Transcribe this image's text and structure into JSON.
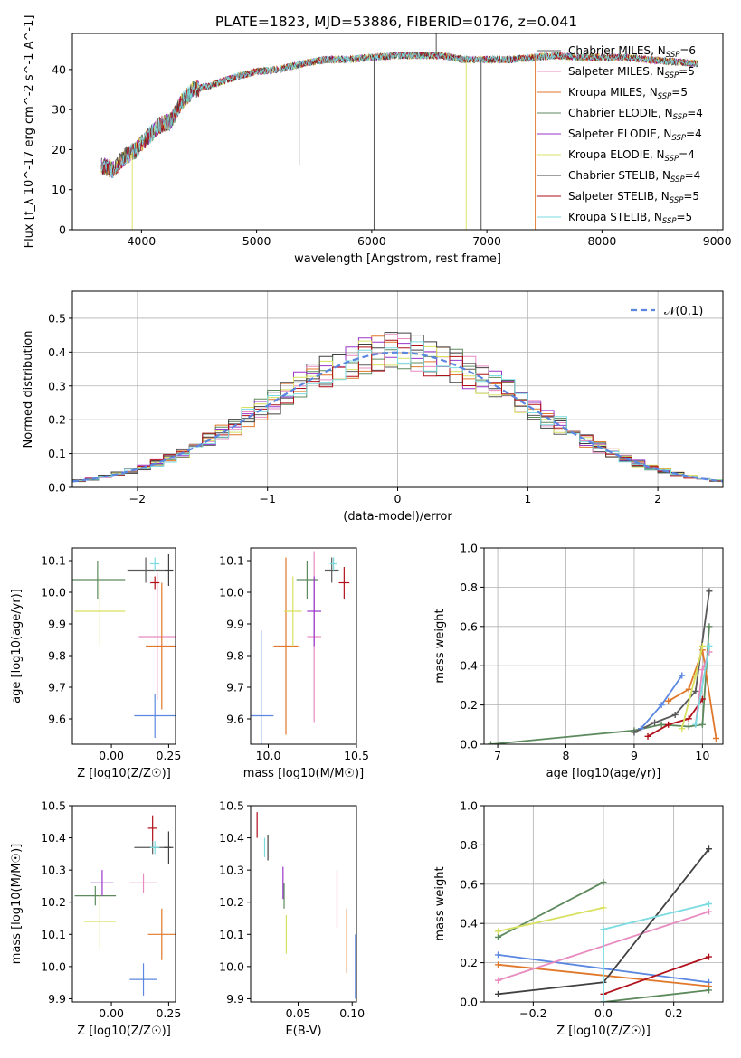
{
  "figure_title": "PLATE=1823, MJD=53886, FIBERID=0176, z=0.041",
  "models": [
    {
      "name": "Chabrier MILES",
      "color": "#5a5a5a",
      "nssp": "6"
    },
    {
      "name": "Salpeter MILES",
      "color": "#e88bc0",
      "nssp": "5"
    },
    {
      "name": "Kroupa MILES",
      "color": "#e0772a",
      "nssp": "5"
    },
    {
      "name": "Chabrier ELODIE",
      "color": "#5d8a5d",
      "nssp": "4"
    },
    {
      "name": "Salpeter ELODIE",
      "color": "#9a36c9",
      "nssp": "4"
    },
    {
      "name": "Kroupa ELODIE",
      "color": "#d8e060",
      "nssp": "4"
    },
    {
      "name": "Chabrier STELIB",
      "color": "#404040",
      "nssp": "4"
    },
    {
      "name": "Salpeter STELIB",
      "color": "#b0101a",
      "nssp": "5"
    },
    {
      "name": "Kroupa STELIB",
      "color": "#7adbe0",
      "nssp": "5"
    }
  ],
  "chart_data": [
    {
      "type": "line",
      "id": "spectrum",
      "xlabel": "wavelength [Angstrom, rest frame]",
      "ylabel": "Flux [f_λ 10^-17 erg cm^-2 s^-1 A^-1]",
      "xlim": [
        3400,
        9050
      ],
      "ylim": [
        0,
        49
      ],
      "xticks": [
        "4000",
        "5000",
        "6000",
        "7000",
        "8000",
        "9000"
      ],
      "yticks": [
        "0",
        "10",
        "20",
        "30",
        "40"
      ],
      "legend_position": "top-right",
      "continuum": {
        "x": [
          3650,
          3750,
          3850,
          3950,
          4050,
          4150,
          4250,
          4350,
          4450,
          4600,
          4800,
          5000,
          5200,
          5400,
          5600,
          5800,
          6000,
          6200,
          6400,
          6600,
          6800,
          7000,
          7200,
          7400,
          7600,
          7800,
          8000,
          8200,
          8400,
          8600,
          8800
        ],
        "y": [
          16,
          15,
          18,
          20,
          23,
          26,
          27,
          32,
          35,
          36,
          38,
          39.5,
          40,
          41.5,
          42.5,
          42.5,
          43,
          43.5,
          43.5,
          43.5,
          42.5,
          42.5,
          42.5,
          43,
          43.5,
          43,
          43,
          43,
          42.5,
          42,
          41.5
        ]
      },
      "spikes": [
        {
          "x": 3920,
          "y": 0,
          "series": "Kroupa ELODIE"
        },
        {
          "x": 5370,
          "y": 16,
          "series": "Chabrier STELIB"
        },
        {
          "x": 6020,
          "y": 0,
          "series": "Chabrier STELIB"
        },
        {
          "x": 6560,
          "y": 51,
          "series": "Chabrier STELIB"
        },
        {
          "x": 6820,
          "y": 0,
          "series": "Kroupa ELODIE"
        },
        {
          "x": 6950,
          "y": 0,
          "series": "Chabrier STELIB"
        },
        {
          "x": 7420,
          "y": 0,
          "series": "Kroupa MILES"
        }
      ]
    },
    {
      "type": "area",
      "id": "residual-histogram",
      "xlabel": "(data-model)/error",
      "ylabel": "Normed distribution",
      "xlim": [
        -2.5,
        2.5
      ],
      "ylim": [
        0,
        0.58
      ],
      "xticks": [
        "−2",
        "−1",
        "0",
        "1",
        "2"
      ],
      "yticks": [
        "0.0",
        "0.1",
        "0.2",
        "0.3",
        "0.4",
        "0.5"
      ],
      "legend_label": "𝒩(0,1)",
      "legend_position": "top-right",
      "bin_width": 0.1,
      "gaussian": {
        "mu": 0,
        "sigma": 1
      }
    },
    {
      "type": "scatter",
      "id": "age-vs-metallicity",
      "xlabel": "Z [log10(Z/Z☉)]",
      "ylabel": "age  [log10(age/yr)]",
      "xlim": [
        -0.17,
        0.28
      ],
      "ylim": [
        9.52,
        10.14
      ],
      "xticks": [
        "0.00",
        "0.25"
      ],
      "yticks": [
        "9.6",
        "9.7",
        "9.8",
        "9.9",
        "10.0",
        "10.1"
      ],
      "points": [
        {
          "series": "Chabrier MILES",
          "x": 0.15,
          "y": 10.07,
          "xerr": 0.08,
          "yerr": 0.04
        },
        {
          "series": "Salpeter MILES",
          "x": 0.2,
          "y": 9.86,
          "xerr": 0.08,
          "yerr": 0.2
        },
        {
          "series": "Kroupa MILES",
          "x": 0.22,
          "y": 9.83,
          "xerr": 0.07,
          "yerr": 0.2
        },
        {
          "series": "Chabrier ELODIE",
          "x": -0.06,
          "y": 10.04,
          "xerr": 0.12,
          "yerr": 0.06
        },
        {
          "series": "Kroupa ELODIE",
          "x": -0.05,
          "y": 9.94,
          "xerr": 0.11,
          "yerr": 0.11
        },
        {
          "series": "Blue",
          "x": 0.19,
          "y": 9.61,
          "xerr": 0.09,
          "yerr": 0.07
        },
        {
          "series": "Chabrier STELIB",
          "x": 0.25,
          "y": 10.07,
          "xerr": 0.02,
          "yerr": 0.05
        },
        {
          "series": "Salpeter STELIB",
          "x": 0.19,
          "y": 10.03,
          "xerr": 0.02,
          "yerr": 0.02
        },
        {
          "series": "Kroupa STELIB",
          "x": 0.19,
          "y": 10.09,
          "xerr": 0.02,
          "yerr": 0.02
        }
      ]
    },
    {
      "type": "scatter",
      "id": "age-vs-mass",
      "xlabel": "mass [log10(M/M☉)]",
      "ylabel": "",
      "xlim": [
        9.9,
        10.5
      ],
      "ylim": [
        9.52,
        10.14
      ],
      "xticks": [
        "10.0",
        "10.5"
      ],
      "yticks": [
        "9.6",
        "9.7",
        "9.8",
        "9.9",
        "10.0",
        "10.1"
      ],
      "points": [
        {
          "series": "Chabrier MILES",
          "x": 10.36,
          "y": 10.07,
          "xerr": 0.04,
          "yerr": 0.04
        },
        {
          "series": "Salpeter MILES",
          "x": 10.26,
          "y": 9.86,
          "xerr": 0.04,
          "yerr": 0.27
        },
        {
          "series": "Kroupa MILES",
          "x": 10.1,
          "y": 9.83,
          "xerr": 0.07,
          "yerr": 0.28
        },
        {
          "series": "Chabrier ELODIE",
          "x": 10.22,
          "y": 10.04,
          "xerr": 0.06,
          "yerr": 0.06
        },
        {
          "series": "Salpeter ELODIE",
          "x": 10.26,
          "y": 9.94,
          "xerr": 0.04,
          "yerr": 0.11
        },
        {
          "series": "Kroupa ELODIE",
          "x": 10.14,
          "y": 9.94,
          "xerr": 0.05,
          "yerr": 0.11
        },
        {
          "series": "Blue",
          "x": 9.96,
          "y": 9.61,
          "xerr": 0.07,
          "yerr": 0.27
        },
        {
          "series": "Salpeter STELIB",
          "x": 10.43,
          "y": 10.03,
          "xerr": 0.03,
          "yerr": 0.05
        },
        {
          "series": "Kroupa STELIB",
          "x": 10.37,
          "y": 10.09,
          "xerr": 0.02,
          "yerr": 0.02
        }
      ]
    },
    {
      "type": "line",
      "id": "weight-vs-age",
      "xlabel": "age  [log10(age/yr)]",
      "ylabel": "mass weight",
      "xlim": [
        6.8,
        10.3
      ],
      "ylim": [
        0,
        1.0
      ],
      "xticks": [
        "7",
        "8",
        "9",
        "10"
      ],
      "yticks": [
        "0.0",
        "0.2",
        "0.4",
        "0.6",
        "0.8",
        "1.0"
      ],
      "series": [
        {
          "name": "Chabrier ELODIE",
          "x": [
            6.9,
            9.0,
            9.4,
            9.8,
            10.0,
            10.1
          ],
          "y": [
            0.0,
            0.07,
            0.1,
            0.09,
            0.1,
            0.6
          ]
        },
        {
          "name": "Chabrier MILES",
          "x": [
            9.0,
            9.3,
            9.6,
            9.9,
            10.1
          ],
          "y": [
            0.06,
            0.11,
            0.15,
            0.27,
            0.78
          ]
        },
        {
          "name": "Salpeter STELIB",
          "x": [
            9.2,
            9.5,
            9.8,
            10.0
          ],
          "y": [
            0.04,
            0.1,
            0.13,
            0.23
          ]
        },
        {
          "name": "Blue",
          "x": [
            9.1,
            9.4,
            9.7
          ],
          "y": [
            0.08,
            0.2,
            0.35
          ]
        },
        {
          "name": "Kroupa MILES",
          "x": [
            9.5,
            9.8,
            10.0,
            10.2
          ],
          "y": [
            0.22,
            0.28,
            0.48,
            0.03
          ]
        },
        {
          "name": "Kroupa ELODIE",
          "x": [
            9.7,
            9.9,
            10.0
          ],
          "y": [
            0.08,
            0.35,
            0.5
          ]
        },
        {
          "name": "Salpeter MILES",
          "x": [
            9.9,
            10.0,
            10.1
          ],
          "y": [
            0.1,
            0.38,
            0.47
          ]
        },
        {
          "name": "Kroupa STELIB",
          "x": [
            9.9,
            10.1
          ],
          "y": [
            0.1,
            0.5
          ]
        }
      ]
    },
    {
      "type": "scatter",
      "id": "mass-vs-metallicity",
      "xlabel": "Z [log10(Z/Z☉)]",
      "ylabel": "mass [log10(M/M☉)]",
      "xlim": [
        -0.17,
        0.28
      ],
      "ylim": [
        9.89,
        10.5
      ],
      "xticks": [
        "0.00",
        "0.25"
      ],
      "yticks": [
        "9.9",
        "10.0",
        "10.1",
        "10.2",
        "10.3",
        "10.4",
        "10.5"
      ],
      "points": [
        {
          "series": "Chabrier MILES",
          "x": 0.18,
          "y": 10.37,
          "xerr": 0.08,
          "yerr": 0.02
        },
        {
          "series": "Salpeter MILES",
          "x": 0.14,
          "y": 10.26,
          "xerr": 0.06,
          "yerr": 0.03
        },
        {
          "series": "Kroupa MILES",
          "x": 0.22,
          "y": 10.1,
          "xerr": 0.06,
          "yerr": 0.08
        },
        {
          "series": "Chabrier ELODIE",
          "x": -0.07,
          "y": 10.22,
          "xerr": 0.09,
          "yerr": 0.03
        },
        {
          "series": "Salpeter ELODIE",
          "x": -0.04,
          "y": 10.26,
          "xerr": 0.05,
          "yerr": 0.04
        },
        {
          "series": "Kroupa ELODIE",
          "x": -0.05,
          "y": 10.14,
          "xerr": 0.07,
          "yerr": 0.09
        },
        {
          "series": "Blue",
          "x": 0.14,
          "y": 9.96,
          "xerr": 0.06,
          "yerr": 0.05
        },
        {
          "series": "Chabrier STELIB",
          "x": 0.25,
          "y": 10.37,
          "xerr": 0.02,
          "yerr": 0.05
        },
        {
          "series": "Salpeter STELIB",
          "x": 0.18,
          "y": 10.43,
          "xerr": 0.02,
          "yerr": 0.04
        },
        {
          "series": "Kroupa STELIB",
          "x": 0.19,
          "y": 10.37,
          "xerr": 0.02,
          "yerr": 0.02
        }
      ]
    },
    {
      "type": "scatter",
      "id": "mass-vs-extinction",
      "xlabel": "E(B-V)",
      "ylabel": "",
      "xlim": [
        0.006,
        0.104
      ],
      "ylim": [
        9.89,
        10.5
      ],
      "xticks": [
        "0.05",
        "0.10"
      ],
      "yticks": [
        "9.9",
        "10.0",
        "10.1",
        "10.2",
        "10.3",
        "10.4",
        "10.5"
      ],
      "points": [
        {
          "series": "Salpeter STELIB",
          "x": 0.012,
          "y": 10.44,
          "xerr": 0,
          "yerr": 0.04
        },
        {
          "series": "Kroupa STELIB",
          "x": 0.019,
          "y": 10.37,
          "xerr": 0,
          "yerr": 0.03
        },
        {
          "series": "Chabrier STELIB",
          "x": 0.022,
          "y": 10.37,
          "xerr": 0,
          "yerr": 0.04
        },
        {
          "series": "Salpeter ELODIE",
          "x": 0.036,
          "y": 10.26,
          "xerr": 0,
          "yerr": 0.05
        },
        {
          "series": "Chabrier ELODIE",
          "x": 0.037,
          "y": 10.22,
          "xerr": 0,
          "yerr": 0.04
        },
        {
          "series": "Kroupa ELODIE",
          "x": 0.039,
          "y": 10.1,
          "xerr": 0,
          "yerr": 0.06
        },
        {
          "series": "Salpeter MILES",
          "x": 0.086,
          "y": 10.21,
          "xerr": 0,
          "yerr": 0.09
        },
        {
          "series": "Kroupa MILES",
          "x": 0.095,
          "y": 10.08,
          "xerr": 0,
          "yerr": 0.1
        },
        {
          "series": "Blue",
          "x": 0.103,
          "y": 10.0,
          "xerr": 0,
          "yerr": 0.1
        }
      ]
    },
    {
      "type": "line",
      "id": "weight-vs-metallicity",
      "xlabel": "Z [log10(Z/Z☉)]",
      "ylabel": "mass weight",
      "xlim": [
        -0.34,
        0.34
      ],
      "ylim": [
        0,
        1.0
      ],
      "xticks": [
        "−0.2",
        "0.0",
        "0.2"
      ],
      "yticks": [
        "0.0",
        "0.2",
        "0.4",
        "0.6",
        "0.8",
        "1.0"
      ],
      "series": [
        {
          "name": "Chabrier ELODIE",
          "x": [
            -0.3,
            0.0
          ],
          "y": [
            0.33,
            0.61
          ]
        },
        {
          "name": "Kroupa ELODIE",
          "x": [
            -0.3,
            0.0
          ],
          "y": [
            0.36,
            0.48
          ]
        },
        {
          "name": "Blue",
          "x": [
            -0.3,
            0.3
          ],
          "y": [
            0.24,
            0.1
          ]
        },
        {
          "name": "Kroupa MILES",
          "x": [
            -0.3,
            0.3
          ],
          "y": [
            0.19,
            0.08
          ]
        },
        {
          "name": "Salpeter MILES",
          "x": [
            -0.3,
            0.3
          ],
          "y": [
            0.11,
            0.46
          ]
        },
        {
          "name": "Chabrier STELIB",
          "x": [
            -0.3,
            0.0,
            0.3
          ],
          "y": [
            0.04,
            0.1,
            0.78
          ]
        },
        {
          "name": "Chabrier ELODIE",
          "x": [
            0.0,
            0.3
          ],
          "y": [
            0.0,
            0.06
          ]
        },
        {
          "name": "Salpeter STELIB",
          "x": [
            0.0,
            0.3
          ],
          "y": [
            0.04,
            0.23
          ]
        },
        {
          "name": "Kroupa STELIB",
          "x": [
            0.0,
            0.3
          ],
          "y": [
            0.37,
            0.5
          ]
        },
        {
          "name": "Kroupa STELIB",
          "x": [
            0.0,
            0.0
          ],
          "y": [
            0.0,
            0.37
          ]
        }
      ]
    }
  ]
}
